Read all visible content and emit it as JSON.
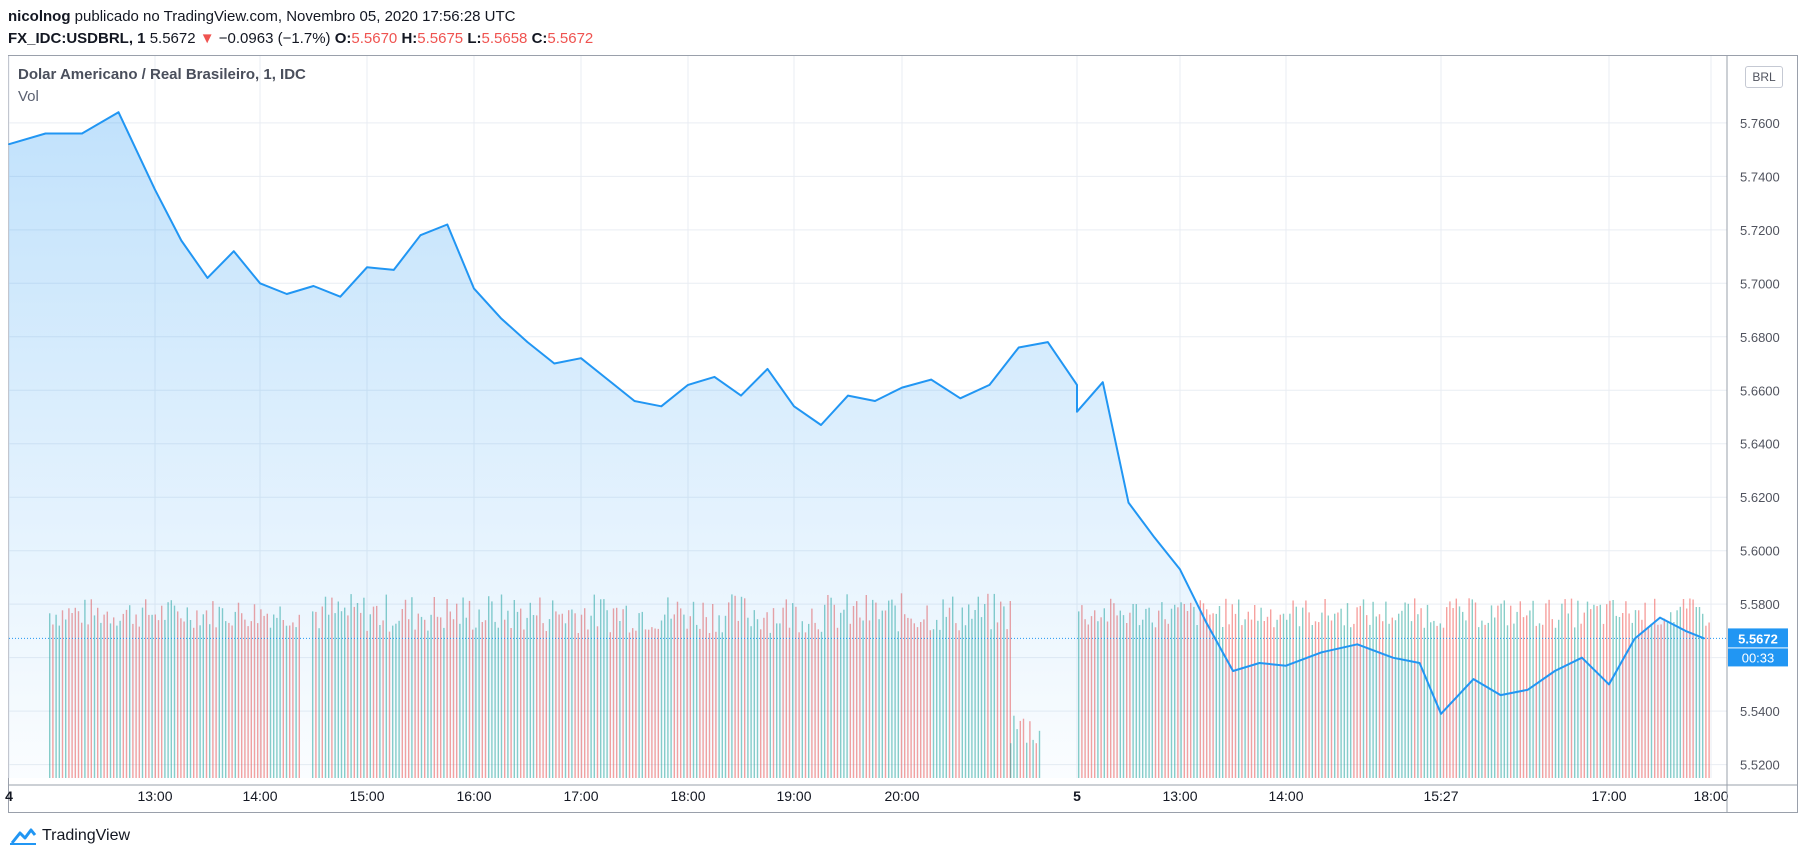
{
  "header": {
    "author": "nicolnog",
    "published_text": "publicado no TradingView.com, Novembro 05, 2020 17:56:28 UTC",
    "symbol_interval": "FX_IDC:USDBRL, 1",
    "last_price": "5.5672",
    "change_arrow": "▼",
    "change": "−0.0963 (−1.7%)",
    "o_label": "O:",
    "o_value": "5.5670",
    "h_label": "H:",
    "h_value": "5.5675",
    "l_label": "L:",
    "l_value": "5.5658",
    "c_label": "C:",
    "c_value": "5.5672"
  },
  "pane": {
    "title": "Dolar Americano / Real Brasileiro, 1, IDC",
    "volume_label": "Vol",
    "currency_button": "BRL",
    "price_badge": "5.5672",
    "countdown_badge": "00:33"
  },
  "footer": {
    "brand": "TradingView"
  },
  "colors": {
    "line": "#2196f3",
    "area_top": "#2196f3",
    "vol_up": "#26a69a",
    "vol_down": "#ef5350",
    "badge": "#2196f3",
    "grid": "#e9edf3"
  },
  "chart_data": {
    "type": "line",
    "title": "Dolar Americano / Real Brasileiro, 1, IDC",
    "series": [
      {
        "name": "USDBRL",
        "x": [
          "4 12:00",
          "4 12:15",
          "4 12:30",
          "4 12:45",
          "4 13:00",
          "4 13:15",
          "4 13:30",
          "4 13:45",
          "4 14:00",
          "4 14:15",
          "4 14:30",
          "4 14:45",
          "4 15:00",
          "4 15:15",
          "4 15:30",
          "4 15:45",
          "4 16:00",
          "4 16:15",
          "4 16:30",
          "4 16:45",
          "4 17:00",
          "4 17:15",
          "4 17:30",
          "4 17:45",
          "4 18:00",
          "4 18:15",
          "4 18:30",
          "4 18:45",
          "4 19:00",
          "4 19:15",
          "4 19:30",
          "4 19:45",
          "4 20:00",
          "4 20:15",
          "4 20:30",
          "4 20:45",
          "4 21:00",
          "4 21:15",
          "4 21:30",
          "5 12:00",
          "5 12:15",
          "5 12:30",
          "5 12:45",
          "5 13:00",
          "5 13:15",
          "5 13:30",
          "5 13:45",
          "5 14:00",
          "5 14:20",
          "5 14:40",
          "5 15:00",
          "5 15:15",
          "5 15:27",
          "5 15:45",
          "5 16:00",
          "5 16:15",
          "5 16:30",
          "5 16:45",
          "5 17:00",
          "5 17:15",
          "5 17:30",
          "5 17:45",
          "5 17:56"
        ],
        "values": [
          5.752,
          5.756,
          5.756,
          5.764,
          5.735,
          5.716,
          5.702,
          5.712,
          5.7,
          5.696,
          5.699,
          5.695,
          5.706,
          5.705,
          5.718,
          5.722,
          5.698,
          5.687,
          5.678,
          5.67,
          5.672,
          5.664,
          5.656,
          5.654,
          5.662,
          5.665,
          5.658,
          5.668,
          5.654,
          5.647,
          5.658,
          5.656,
          5.661,
          5.664,
          5.657,
          5.662,
          5.676,
          5.678,
          5.662,
          5.652,
          5.663,
          5.618,
          5.605,
          5.593,
          5.573,
          5.555,
          5.558,
          5.557,
          5.562,
          5.565,
          5.56,
          5.558,
          5.539,
          5.552,
          5.546,
          5.548,
          5.555,
          5.56,
          5.55,
          5.567,
          5.575,
          5.57,
          5.5672
        ]
      }
    ],
    "volume": {
      "name": "Vol",
      "note": "volume bars in lower pane, alternating up/down colors"
    },
    "x_tick_labels": [
      "4",
      "13:00",
      "14:00",
      "15:00",
      "16:00",
      "17:00",
      "18:00",
      "19:00",
      "20:00",
      "5",
      "13:00",
      "14:00",
      "15:27",
      "17:00",
      "18:00"
    ],
    "y_tick_labels": [
      "5.5200",
      "5.5400",
      "5.5600",
      "5.5800",
      "5.6000",
      "5.6200",
      "5.6400",
      "5.6600",
      "5.6800",
      "5.7000",
      "5.7200",
      "5.7400",
      "5.7600"
    ],
    "ylim": [
      5.515,
      5.785
    ],
    "grid": true
  }
}
